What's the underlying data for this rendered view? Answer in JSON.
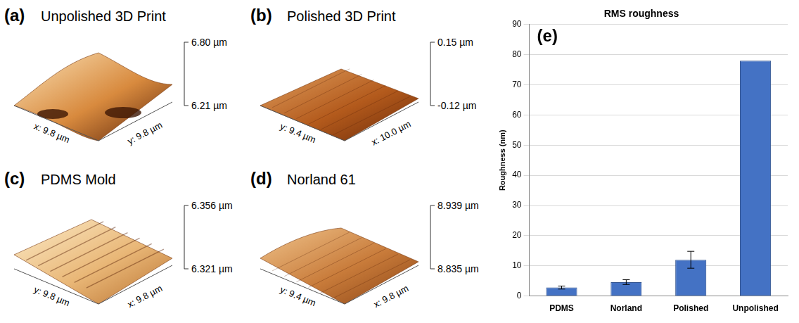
{
  "surface_panels": [
    {
      "letter": "(a)",
      "title": "Unpolished 3D Print",
      "z_top": "6.80 µm",
      "z_bottom": "6.21 µm",
      "base_labels": [
        "x: 9.8 µm",
        "y: 9.8 µm"
      ]
    },
    {
      "letter": "(b)",
      "title": "Polished 3D Print",
      "z_top": "0.15 µm",
      "z_bottom": "-0.12 µm",
      "base_labels": [
        "y: 9.4 µm",
        "x: 10.0 µm"
      ]
    },
    {
      "letter": "(c)",
      "title": "PDMS Mold",
      "z_top": "6.356 µm",
      "z_bottom": "6.321 µm",
      "base_labels": [
        "y: 9.8 µm",
        "x: 9.8 µm"
      ]
    },
    {
      "letter": "(d)",
      "title": "Norland 61",
      "z_top": "8.939 µm",
      "z_bottom": "8.835 µm",
      "base_labels": [
        "y: 9.4 µm",
        "x: 9.8 µm"
      ]
    }
  ],
  "chart_data": {
    "type": "bar",
    "title": "RMS roughness",
    "panel": "(e)",
    "y_label": "Roughness (nm)",
    "categories": [
      "PDMS",
      "Norland",
      "Polished",
      "Unpolished"
    ],
    "values": [
      2.8,
      4.6,
      12,
      78
    ],
    "errors": [
      0.5,
      0.8,
      2.8,
      null
    ],
    "color": "#4472c4",
    "ylim": [
      0,
      90
    ],
    "yticks": [
      0,
      10,
      20,
      30,
      40,
      50,
      60,
      70,
      80,
      90
    ],
    "grid": true
  }
}
